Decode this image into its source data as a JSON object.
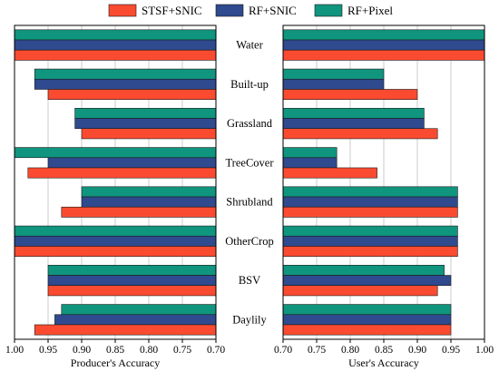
{
  "chart_data": {
    "type": "bar",
    "orientation": "horizontal",
    "legend_position": "top-center",
    "categories": [
      "Water",
      "Built-up",
      "Grassland",
      "TreeCover",
      "Shrubland",
      "OtherCrop",
      "BSV",
      "Daylily"
    ],
    "series": [
      {
        "name": "STSF+SNIC",
        "color": "#fa4b31"
      },
      {
        "name": "RF+SNIC",
        "color": "#2f4a8e"
      },
      {
        "name": "RF+Pixel",
        "color": "#10957e"
      }
    ],
    "panels": [
      {
        "xlabel": "Producer's Accuracy",
        "xlim": [
          1.0,
          0.7
        ],
        "reversed": true,
        "ticks": [
          "1.00",
          "0.95",
          "0.90",
          "0.85",
          "0.80",
          "0.75",
          "0.70"
        ],
        "grid": true,
        "values": {
          "STSF+SNIC": [
            1.0,
            0.95,
            0.9,
            0.98,
            0.93,
            1.0,
            0.95,
            0.97
          ],
          "RF+SNIC": [
            1.0,
            0.97,
            0.91,
            0.95,
            0.9,
            1.0,
            0.95,
            0.94
          ],
          "RF+Pixel": [
            1.0,
            0.97,
            0.91,
            1.0,
            0.9,
            1.0,
            0.95,
            0.93
          ]
        }
      },
      {
        "xlabel": "User's Accuracy",
        "xlim": [
          0.7,
          1.0
        ],
        "reversed": false,
        "ticks": [
          "0.70",
          "0.75",
          "0.80",
          "0.85",
          "0.90",
          "0.95",
          "1.00"
        ],
        "grid": true,
        "values": {
          "STSF+SNIC": [
            1.0,
            0.9,
            0.93,
            0.84,
            0.96,
            0.96,
            0.93,
            0.95
          ],
          "RF+SNIC": [
            1.0,
            0.85,
            0.91,
            0.78,
            0.96,
            0.96,
            0.95,
            0.95
          ],
          "RF+Pixel": [
            1.0,
            0.85,
            0.91,
            0.78,
            0.96,
            0.96,
            0.94,
            0.95
          ]
        }
      }
    ]
  }
}
